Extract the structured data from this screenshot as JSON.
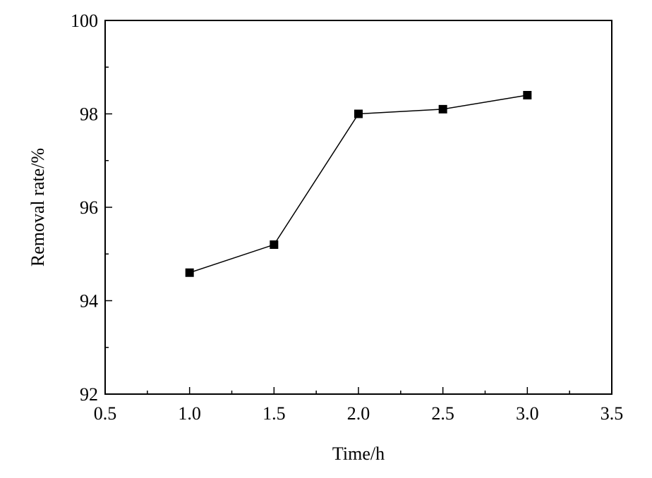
{
  "chart_data": {
    "type": "line",
    "xlabel": "Time/h",
    "ylabel": "Removal rate/%",
    "xlim": [
      0.5,
      3.5
    ],
    "ylim": [
      92,
      100
    ],
    "x_ticks": [
      "0.5",
      "1.0",
      "1.5",
      "2.0",
      "2.5",
      "3.0",
      "3.5"
    ],
    "y_ticks": [
      "92",
      "94",
      "96",
      "98",
      "100"
    ],
    "grid": false,
    "marker": "square",
    "line_color": "#000000",
    "series": [
      {
        "x": [
          1.0,
          1.5,
          2.0,
          2.5,
          3.0
        ],
        "y": [
          94.6,
          95.2,
          98.0,
          98.1,
          98.4
        ]
      }
    ]
  }
}
